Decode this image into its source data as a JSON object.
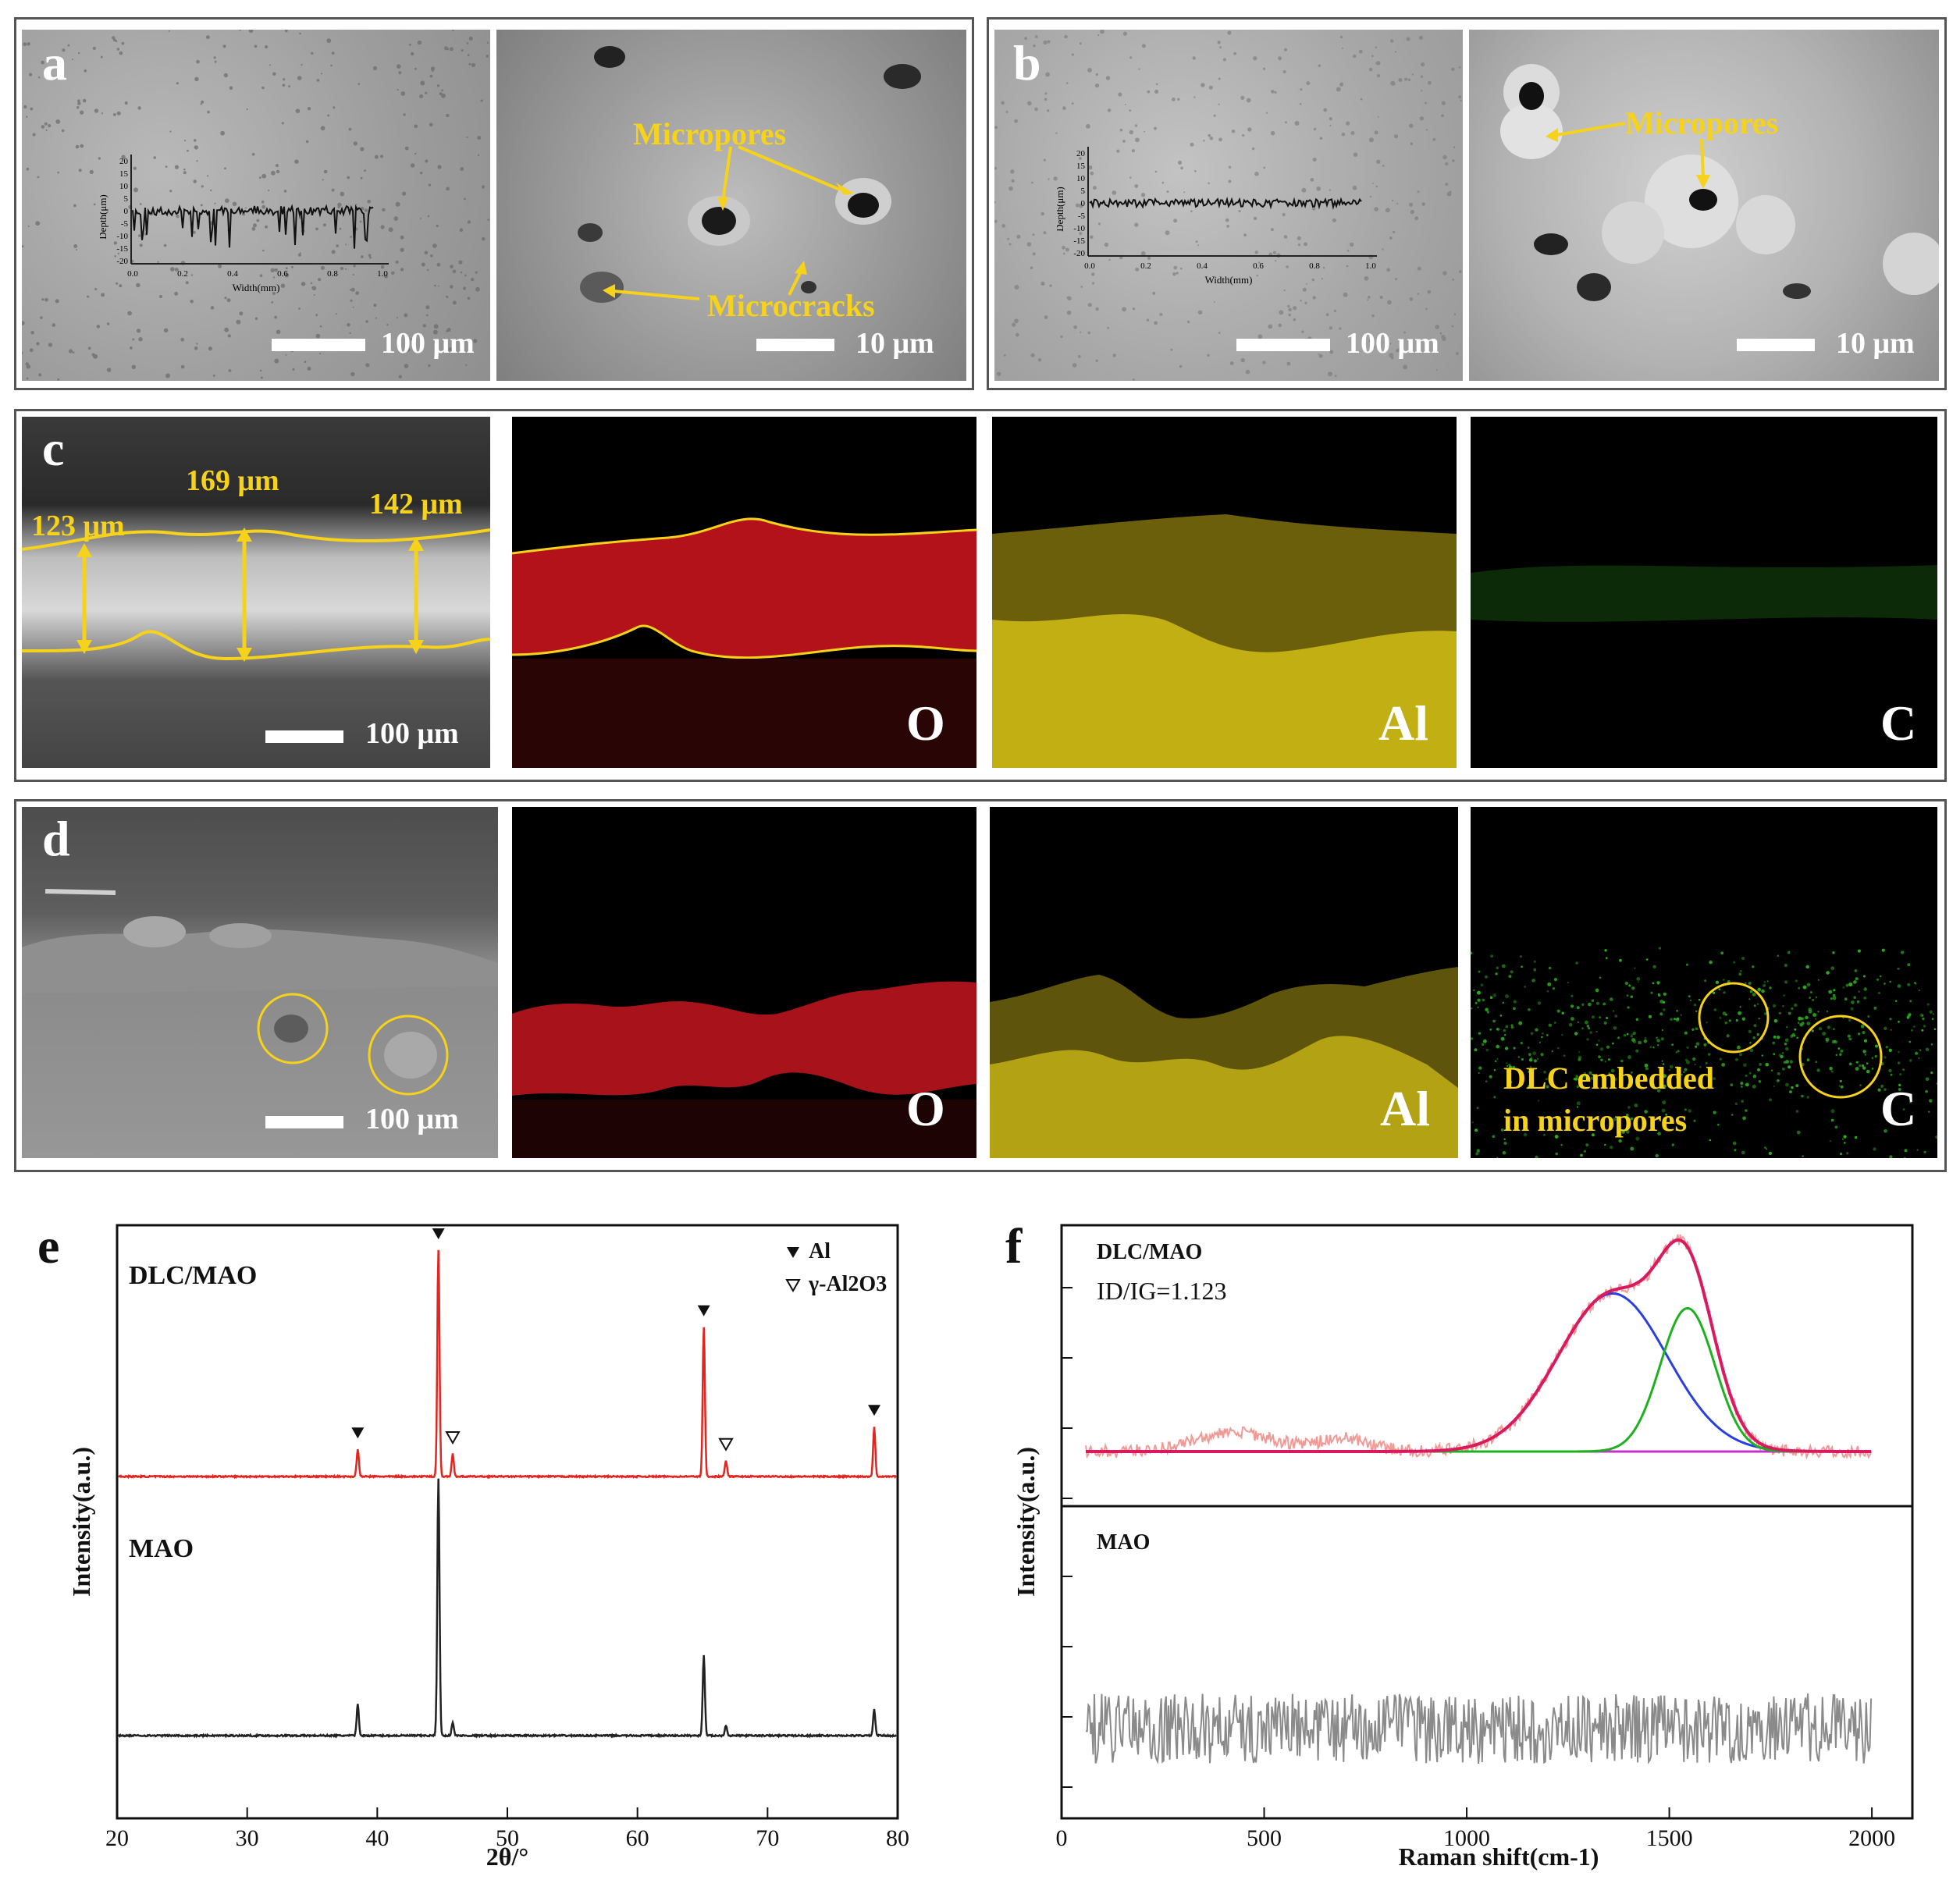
{
  "panels": {
    "a": {
      "letter": "a",
      "scale_left": "100 μm",
      "scale_right": "10 μm",
      "annot_micropores": "Micropores",
      "annot_microcracks": "Microcracks",
      "inset": {
        "ylabel": "Depth(μm)",
        "xlabel": "Width(mm)",
        "yticks": [
          "20",
          "15",
          "10",
          "5",
          "0",
          "-5",
          "-10",
          "-15",
          "-20"
        ],
        "xticks": [
          "0.0",
          "0.2",
          "0.4",
          "0.6",
          "0.8",
          "1.0"
        ]
      }
    },
    "b": {
      "letter": "b",
      "scale_left": "100 μm",
      "scale_right": "10 μm",
      "annot_micropores": "Micropores",
      "inset": {
        "ylabel": "Depth(μm)",
        "xlabel": "Width(mm)",
        "yticks": [
          "20",
          "15",
          "10",
          "5",
          "0",
          "-5",
          "-10",
          "-15",
          "-20"
        ],
        "xticks": [
          "0.0",
          "0.2",
          "0.4",
          "0.6",
          "0.8",
          "1.0"
        ]
      }
    },
    "c": {
      "letter": "c",
      "scale": "100 μm",
      "thick1": "123 μm",
      "thick2": "169 μm",
      "thick3": "142 μm",
      "el_o": "O",
      "el_al": "Al",
      "el_c": "C"
    },
    "d": {
      "letter": "d",
      "scale": "100 μm",
      "el_o": "O",
      "el_al": "Al",
      "el_c": "C",
      "annot_line1": "DLC embedded",
      "annot_line2": "in micropores"
    },
    "e": {
      "letter": "e"
    },
    "f": {
      "letter": "f"
    }
  },
  "colors": {
    "annot": "#f7d21a",
    "o_map": "#c41414",
    "al_map": "#c8b414",
    "c_map": "#2fae1f"
  },
  "chart_data": [
    {
      "type": "line",
      "id": "xrd",
      "xlabel": "2θ/°",
      "ylabel": "Intensity(a.u.)",
      "xlim": [
        20,
        80
      ],
      "xticks": [
        20,
        30,
        40,
        50,
        60,
        70,
        80
      ],
      "legend": [
        {
          "marker": "filled-triangle",
          "label": "Al"
        },
        {
          "marker": "open-triangle",
          "label": "γ-Al2O3"
        }
      ],
      "series": [
        {
          "name": "DLC/MAO",
          "color": "#e0261f",
          "peaks": [
            {
              "x": 38.5,
              "h": 0.12
            },
            {
              "x": 44.7,
              "h": 1.0
            },
            {
              "x": 45.8,
              "h": 0.1
            },
            {
              "x": 65.1,
              "h": 0.66
            },
            {
              "x": 66.8,
              "h": 0.07
            },
            {
              "x": 78.2,
              "h": 0.22
            }
          ]
        },
        {
          "name": "MAO",
          "color": "#222222",
          "peaks": [
            {
              "x": 38.5,
              "h": 0.12
            },
            {
              "x": 44.7,
              "h": 1.0
            },
            {
              "x": 45.8,
              "h": 0.05
            },
            {
              "x": 65.1,
              "h": 0.31
            },
            {
              "x": 66.8,
              "h": 0.04
            },
            {
              "x": 78.2,
              "h": 0.1
            }
          ]
        }
      ],
      "markers": [
        {
          "x": 38.5,
          "kind": "filled"
        },
        {
          "x": 44.7,
          "kind": "filled"
        },
        {
          "x": 45.8,
          "kind": "open"
        },
        {
          "x": 65.1,
          "kind": "filled"
        },
        {
          "x": 66.8,
          "kind": "open"
        },
        {
          "x": 78.2,
          "kind": "filled"
        }
      ]
    },
    {
      "type": "line",
      "id": "raman",
      "xlabel": "Raman shift(cm-1)",
      "ylabel": "Intensity(a.u.)",
      "xlim": [
        0,
        2100
      ],
      "xticks": [
        0,
        500,
        1000,
        1500,
        2000
      ],
      "annotation": "ID/IG=1.123",
      "series": [
        {
          "name": "DLC/MAO",
          "color": "#f19a95"
        },
        {
          "name": "D band fit",
          "color": "#2a3fe0",
          "center": 1360,
          "width": 190,
          "height": 0.75
        },
        {
          "name": "G band fit",
          "color": "#1fb01f",
          "center": 1545,
          "width": 95,
          "height": 0.68
        },
        {
          "name": "cumulative fit",
          "color": "#d81b60"
        },
        {
          "name": "baseline",
          "color": "#c531c5"
        },
        {
          "name": "MAO",
          "color": "#8a8a8a"
        }
      ]
    }
  ]
}
